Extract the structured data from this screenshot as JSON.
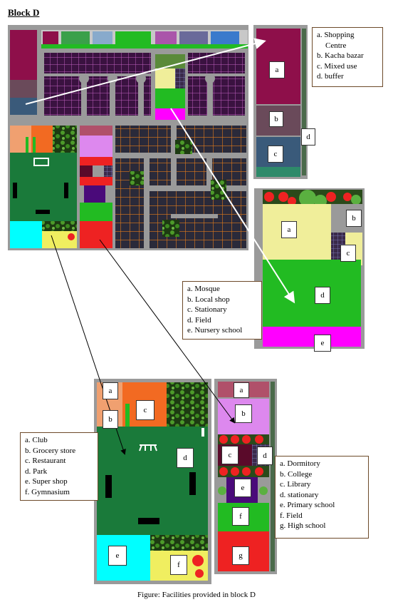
{
  "title": "Block D",
  "caption": "Figure: Facilities provided in block D",
  "commercial": {
    "labels": [
      "a",
      "b",
      "c",
      "d"
    ],
    "legend": [
      "a. Shopping",
      "Centre",
      "b. Kacha bazar",
      "c. Mixed use",
      "d. buffer"
    ]
  },
  "mosque_zone": {
    "labels": [
      "a",
      "b",
      "c",
      "d",
      "e"
    ],
    "legend": [
      "a. Mosque",
      "b. Local shop",
      "c. Stationary",
      "d. Field",
      "e. Nursery school"
    ]
  },
  "club_zone": {
    "labels": [
      "a",
      "b",
      "c",
      "d",
      "e",
      "f"
    ],
    "legend": [
      "a. Club",
      "b. Grocery store",
      "c. Restaurant",
      "d. Park",
      "e. Super shop",
      "f. Gymnasium"
    ]
  },
  "education_zone": {
    "labels": [
      "a",
      "b",
      "c",
      "d",
      "e",
      "f",
      "g"
    ],
    "legend": [
      "a. Dormitory",
      "b. College",
      "c. Library",
      "d. stationary",
      "e. Primary school",
      "f. Field",
      "g. High school"
    ]
  },
  "colors": {
    "maroon": "#8e0f4a",
    "park_green": "#1a7a3a",
    "field_green": "#22bb22",
    "magenta": "#ff00ff",
    "light_yellow": "#f0ee9a",
    "lavender": "#dd88ee",
    "red": "#ee2222",
    "cyan": "#00ffff",
    "orange": "#f26a22",
    "road_gray": "#9a9a9a",
    "dark_plot": "#2a2a3a",
    "purple_grid": "#5a1a5a",
    "arrow_white": "#ffffff"
  }
}
